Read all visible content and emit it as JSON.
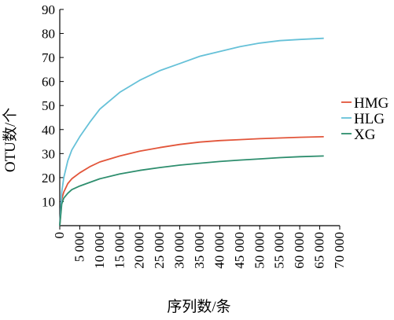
{
  "chart_data": {
    "type": "line",
    "xlabel": "序列数/条",
    "ylabel": "OTU数/个",
    "xlim": [
      0,
      70000
    ],
    "ylim": [
      0,
      90
    ],
    "xticks": [
      0,
      5000,
      10000,
      15000,
      20000,
      25000,
      30000,
      35000,
      40000,
      45000,
      50000,
      55000,
      60000,
      65000,
      70000
    ],
    "xtick_labels": [
      "0",
      "5 000",
      "10 000",
      "15 000",
      "20 000",
      "25 000",
      "30 000",
      "35 000",
      "40 000",
      "45 000",
      "50 000",
      "55 000",
      "60 000",
      "65 000",
      "70 000"
    ],
    "yticks": [
      10,
      20,
      30,
      40,
      50,
      60,
      70,
      80,
      90
    ],
    "ytick_labels": [
      "10",
      "20",
      "30",
      "40",
      "50",
      "60",
      "70",
      "80",
      "90"
    ],
    "grid": false,
    "legend_position": "right",
    "series": [
      {
        "name": "HMG",
        "color": "#e2553a",
        "x": [
          0,
          500,
          1000,
          2000,
          3000,
          5000,
          7500,
          10000,
          15000,
          20000,
          25000,
          30000,
          35000,
          40000,
          45000,
          50000,
          55000,
          60000,
          66000
        ],
        "y": [
          0,
          11,
          14,
          17.5,
          19.5,
          22,
          24.5,
          26.5,
          29,
          31,
          32.5,
          33.8,
          34.8,
          35.4,
          35.8,
          36.2,
          36.5,
          36.8,
          37
        ]
      },
      {
        "name": "HLG",
        "color": "#66c1d8",
        "x": [
          0,
          500,
          1000,
          2000,
          3000,
          5000,
          7500,
          10000,
          15000,
          20000,
          25000,
          30000,
          35000,
          40000,
          45000,
          50000,
          55000,
          60000,
          66000
        ],
        "y": [
          0,
          14,
          20,
          27,
          31.5,
          37,
          43,
          48.5,
          55.5,
          60.5,
          64.5,
          67.5,
          70.5,
          72.5,
          74.5,
          76,
          77,
          77.5,
          78
        ]
      },
      {
        "name": "XG",
        "color": "#2e8e6e",
        "x": [
          0,
          500,
          1000,
          2000,
          3000,
          5000,
          7500,
          10000,
          15000,
          20000,
          25000,
          30000,
          35000,
          40000,
          45000,
          50000,
          55000,
          60000,
          66000
        ],
        "y": [
          0,
          9,
          11.5,
          13.5,
          15,
          16.5,
          18,
          19.5,
          21.5,
          23,
          24.2,
          25.2,
          26,
          26.7,
          27.3,
          27.8,
          28.3,
          28.7,
          29
        ]
      }
    ]
  }
}
